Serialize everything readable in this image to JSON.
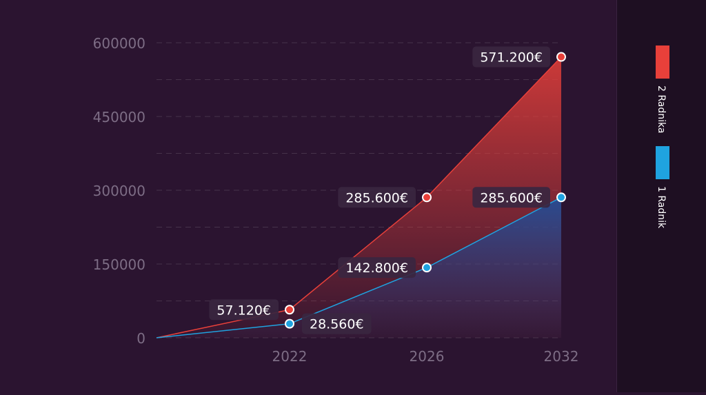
{
  "chart_data": {
    "type": "area",
    "x": [
      "",
      "2022",
      "2026",
      "2032"
    ],
    "ylim": [
      0,
      600000
    ],
    "yticks": [
      "0",
      "150000",
      "300000",
      "450000",
      "600000"
    ],
    "grid": true,
    "legend_position": "right, vertical",
    "series": [
      {
        "name": "2 Radnika",
        "color": "#e8403a",
        "values": [
          0,
          57120,
          285600,
          571200
        ],
        "labels": [
          "",
          "57.120€",
          "285.600€",
          "571.200€"
        ]
      },
      {
        "name": "1 Radnik",
        "color": "#1fa3e0",
        "values": [
          0,
          28560,
          142800,
          285600
        ],
        "labels": [
          "",
          "28.560€",
          "142.800€",
          "285.600€"
        ]
      }
    ]
  },
  "legend": {
    "items": [
      {
        "name": "2 Radnika",
        "color": "#e8403a"
      },
      {
        "name": "1 Radnik",
        "color": "#1fa3e0"
      }
    ]
  }
}
